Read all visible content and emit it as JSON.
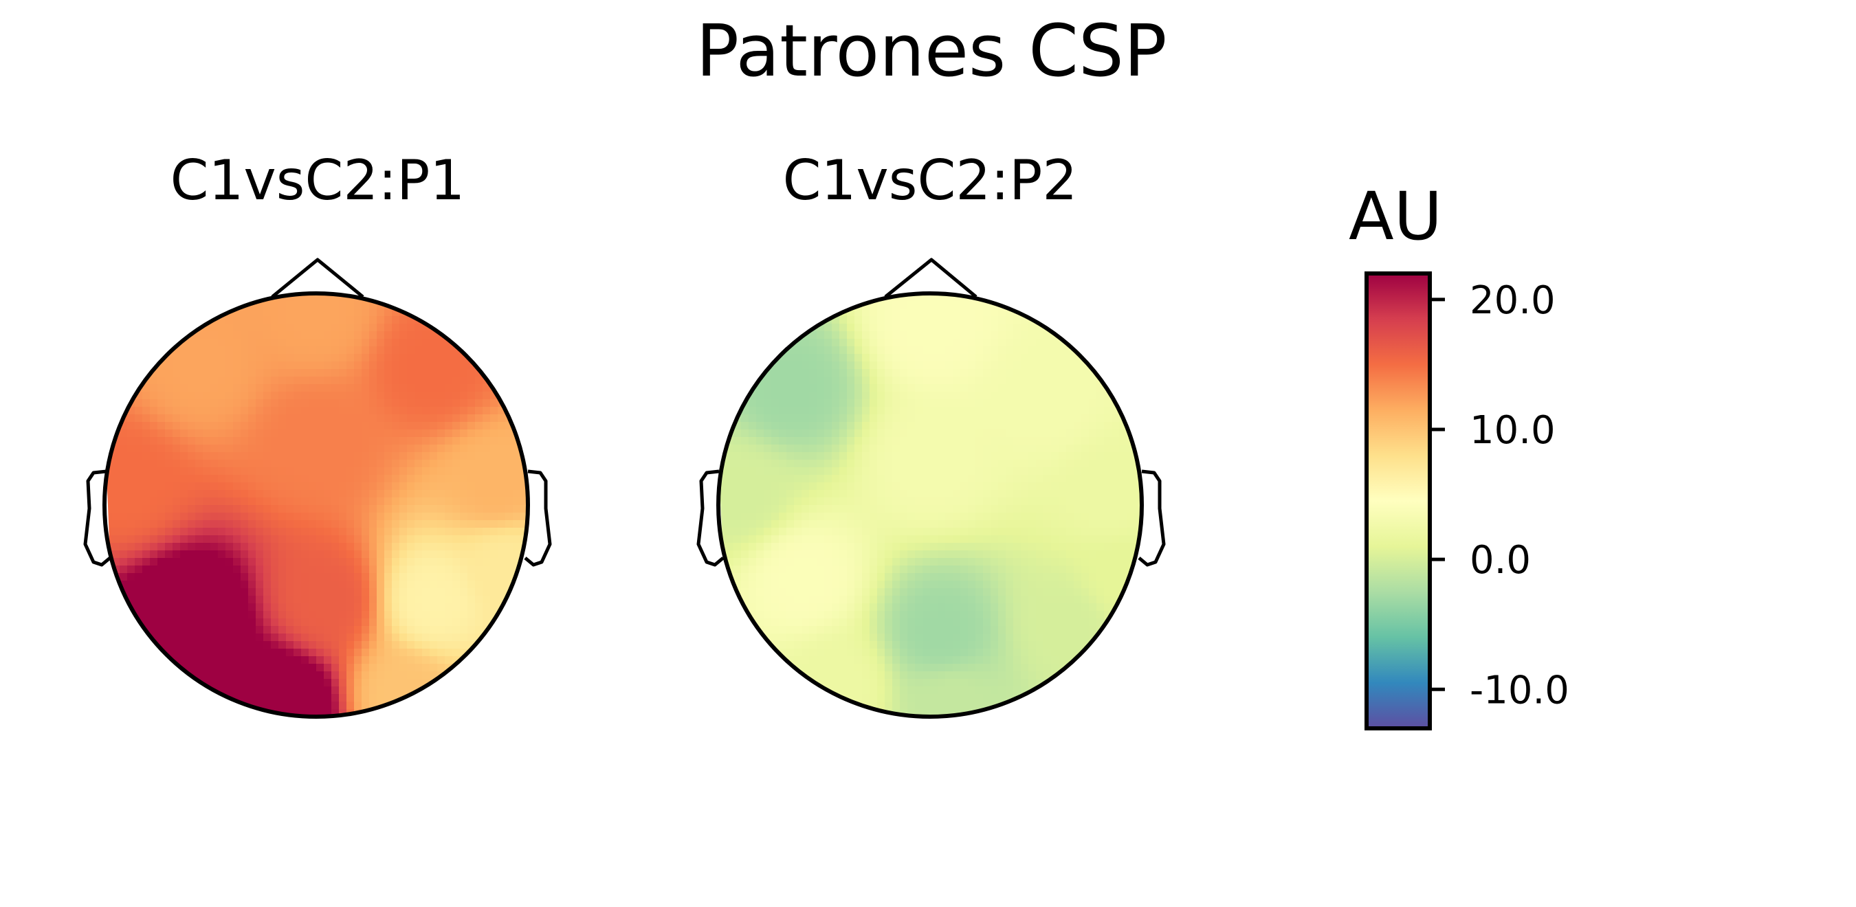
{
  "chart_data": {
    "type": "heatmap",
    "title": "Patrones CSP",
    "colormap": "Spectral_r",
    "vmin": -13,
    "vmax": 22,
    "colorbar": {
      "label": "AU",
      "ticks": [
        20.0,
        10.0,
        0.0,
        -10.0
      ],
      "tick_labels": [
        "20.0",
        "10.0",
        "0.0",
        "-10.0"
      ]
    },
    "panels": [
      {
        "title": "C1vsC2:P1",
        "field": [
          {
            "x": 0.0,
            "y": 0.9,
            "v": 12
          },
          {
            "x": -0.55,
            "y": 0.65,
            "v": 12
          },
          {
            "x": 0.55,
            "y": 0.65,
            "v": 15
          },
          {
            "x": -0.9,
            "y": 0.1,
            "v": 15
          },
          {
            "x": 0.0,
            "y": 0.3,
            "v": 14
          },
          {
            "x": 0.85,
            "y": 0.1,
            "v": 11
          },
          {
            "x": -0.6,
            "y": -0.55,
            "v": 25
          },
          {
            "x": -0.15,
            "y": -0.95,
            "v": 25
          },
          {
            "x": 0.05,
            "y": -0.45,
            "v": 16
          },
          {
            "x": 0.55,
            "y": -0.45,
            "v": 6
          },
          {
            "x": 0.9,
            "y": -0.3,
            "v": 7
          },
          {
            "x": 0.4,
            "y": -0.9,
            "v": 10
          }
        ]
      },
      {
        "title": "C1vsC2:P2",
        "field": [
          {
            "x": 0.0,
            "y": 0.85,
            "v": 4
          },
          {
            "x": -0.65,
            "y": 0.55,
            "v": -3
          },
          {
            "x": -0.9,
            "y": 0.05,
            "v": 0
          },
          {
            "x": 0.55,
            "y": 0.5,
            "v": 3
          },
          {
            "x": 0.0,
            "y": 0.2,
            "v": 3
          },
          {
            "x": 0.85,
            "y": 0.05,
            "v": 2
          },
          {
            "x": -0.6,
            "y": -0.35,
            "v": 4
          },
          {
            "x": -0.45,
            "y": -0.85,
            "v": 2
          },
          {
            "x": 0.05,
            "y": -0.6,
            "v": -3
          },
          {
            "x": 0.1,
            "y": -0.95,
            "v": -1
          },
          {
            "x": 0.65,
            "y": -0.55,
            "v": 0
          },
          {
            "x": 0.9,
            "y": -0.35,
            "v": 1
          }
        ]
      }
    ]
  }
}
